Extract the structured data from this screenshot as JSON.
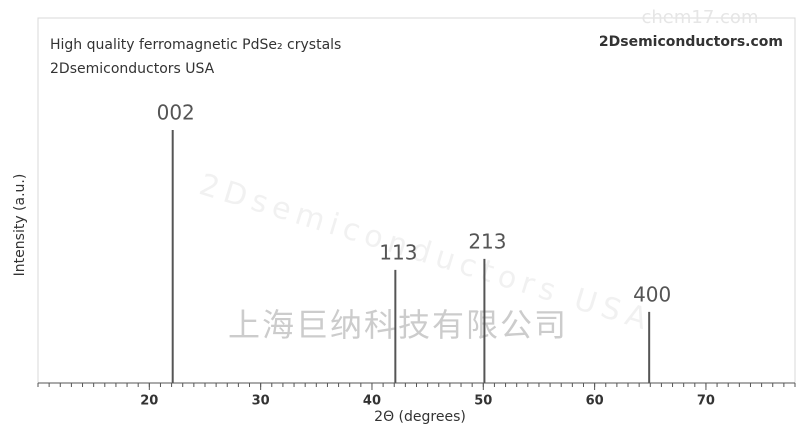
{
  "chart_data": {
    "type": "stem",
    "title_lines": [
      "High quality ferromagnetic PdSe₂ crystals",
      "2Dsemiconductors USA"
    ],
    "brand": "2Dsemiconductors.com",
    "watermarks": [
      "2Dsemiconductors USA",
      "上海巨纳科技有限公司",
      "chem17.com"
    ],
    "x_label": "2Θ (degrees)",
    "y_label": "Intensity (a.u.)",
    "x": [
      22.1,
      42.1,
      50.1,
      64.9
    ],
    "values": [
      69.3,
      31,
      34,
      19.5
    ],
    "labels": [
      "002",
      "113",
      "213",
      "400"
    ],
    "color": "#555555",
    "xlim": [
      10,
      78
    ],
    "xticks": [
      20,
      30,
      40,
      50,
      60,
      70
    ],
    "ylim": [
      0,
      100
    ]
  }
}
